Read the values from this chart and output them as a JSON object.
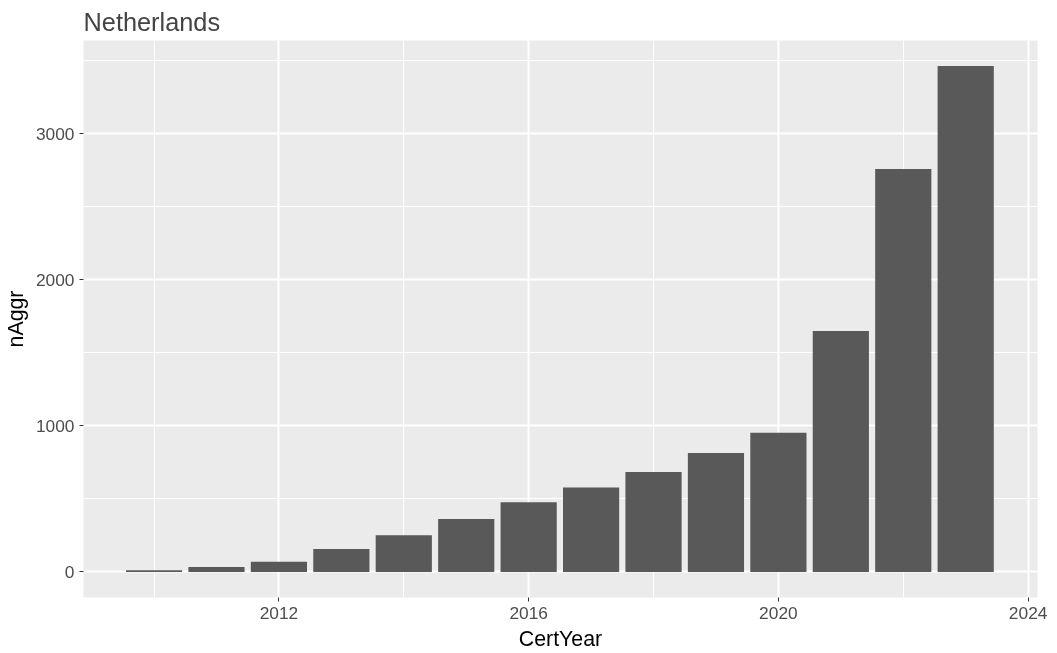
{
  "chart_data": {
    "type": "bar",
    "title": "Netherlands",
    "xlabel": "CertYear",
    "ylabel": "nAggr",
    "x": [
      2010,
      2011,
      2012,
      2013,
      2014,
      2015,
      2016,
      2017,
      2018,
      2019,
      2020,
      2021,
      2022,
      2023
    ],
    "values": [
      12,
      34,
      70,
      158,
      252,
      362,
      477,
      578,
      685,
      815,
      953,
      1650,
      2760,
      3465
    ],
    "color": "#595959",
    "xlim": [
      2008.87,
      2024.15
    ],
    "xticks": [
      2012,
      2016,
      2020,
      2024
    ],
    "ylim": [
      -175,
      3640
    ],
    "yticks": [
      0,
      1000,
      2000,
      3000
    ],
    "grid": true
  }
}
